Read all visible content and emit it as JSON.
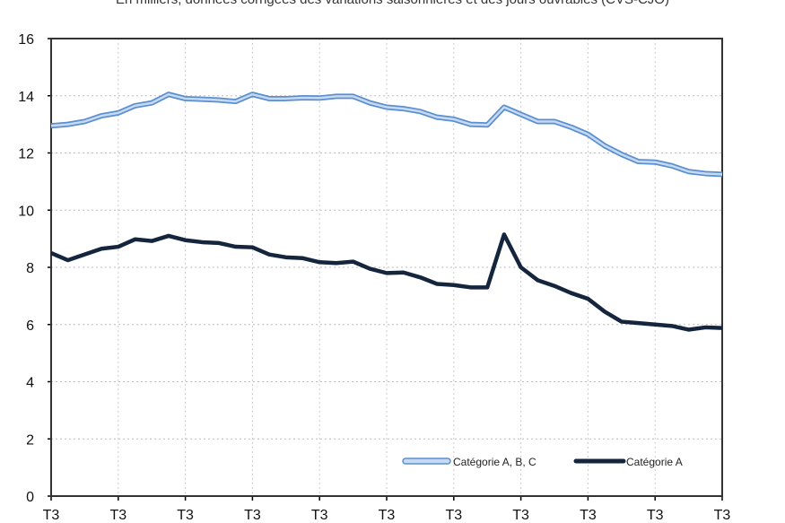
{
  "chart_data": {
    "type": "line",
    "title": "",
    "subtitle": "En milliers, données corrigées des variations saisonnières et des jours ouvrables (CVS-CJO)",
    "xlabel": "",
    "ylabel": "",
    "ylim": [
      0,
      16
    ],
    "yticks": [
      0,
      2,
      4,
      6,
      8,
      10,
      12,
      14,
      16
    ],
    "xtick_labels": [
      "T3",
      "T3",
      "T3",
      "T3",
      "T3",
      "T3",
      "T3",
      "T3",
      "T3",
      "T3",
      "T3"
    ],
    "points_per_tick_interval": 4,
    "grid": true,
    "legend_position": "bottom-right",
    "series": [
      {
        "name": "Catégorie A, B, C",
        "color": "#8db4e2",
        "values": [
          12.95,
          13.0,
          13.1,
          13.3,
          13.4,
          13.65,
          13.75,
          14.05,
          13.9,
          13.88,
          13.85,
          13.8,
          14.05,
          13.9,
          13.9,
          13.93,
          13.92,
          13.98,
          13.98,
          13.75,
          13.6,
          13.55,
          13.45,
          13.25,
          13.18,
          13.0,
          12.98,
          13.6,
          13.35,
          13.1,
          13.1,
          12.9,
          12.65,
          12.25,
          11.95,
          11.7,
          11.68,
          11.55,
          11.35,
          11.28,
          11.25
        ]
      },
      {
        "name": "Catégorie A",
        "color": "#14253d",
        "values": [
          8.5,
          8.25,
          8.45,
          8.65,
          8.72,
          8.98,
          8.92,
          9.1,
          8.95,
          8.88,
          8.85,
          8.72,
          8.7,
          8.45,
          8.35,
          8.32,
          8.18,
          8.15,
          8.2,
          7.95,
          7.8,
          7.82,
          7.65,
          7.42,
          7.38,
          7.3,
          7.3,
          9.15,
          8.0,
          7.55,
          7.35,
          7.1,
          6.9,
          6.45,
          6.1,
          6.05,
          6.0,
          5.95,
          5.82,
          5.9,
          5.88
        ]
      }
    ]
  }
}
